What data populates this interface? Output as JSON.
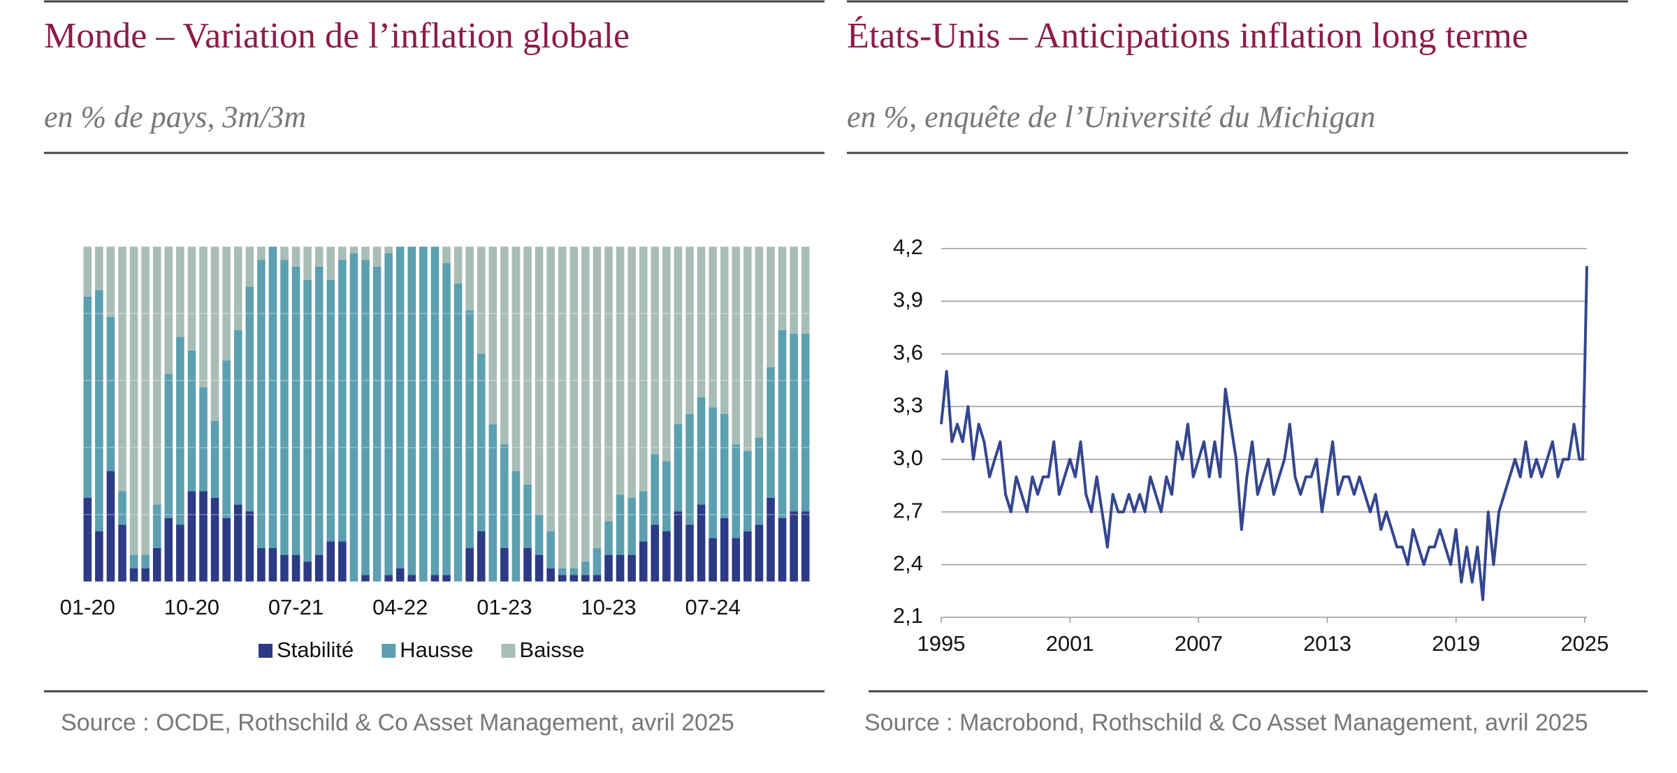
{
  "chart_data": [
    {
      "type": "stacked_bar",
      "title": "Monde – Variation de l’inflation globale",
      "subtitle": "en % de pays, 3m/3m",
      "source": "Source : OCDE, Rothschild & Co Asset Management, avril 2025",
      "categories": [
        "01-20",
        null,
        null,
        null,
        null,
        null,
        null,
        null,
        null,
        "10-20",
        null,
        null,
        null,
        null,
        null,
        null,
        null,
        null,
        "07-21",
        null,
        null,
        null,
        null,
        null,
        null,
        null,
        null,
        "04-22",
        null,
        null,
        null,
        null,
        null,
        null,
        null,
        null,
        "01-23",
        null,
        null,
        null,
        null,
        null,
        null,
        null,
        null,
        "10-23",
        null,
        null,
        null,
        null,
        null,
        null,
        null,
        null,
        "07-24",
        null,
        null,
        null,
        null,
        null,
        null,
        null,
        null
      ],
      "series": [
        {
          "name": "Stabilité",
          "color": "#2d3a86",
          "values": [
            25,
            15,
            33,
            17,
            4,
            4,
            10,
            19,
            17,
            27,
            27,
            25,
            19,
            23,
            21,
            10,
            10,
            8,
            8,
            6,
            8,
            12,
            12,
            0,
            2,
            0,
            2,
            4,
            2,
            0,
            2,
            2,
            0,
            10,
            15,
            0,
            10,
            0,
            10,
            8,
            4,
            2,
            2,
            2,
            2,
            8,
            8,
            8,
            12,
            17,
            15,
            21,
            17,
            23,
            13,
            19,
            13,
            15,
            17,
            25,
            19,
            21,
            21
          ]
        },
        {
          "name": "Hausse",
          "color": "#5c9fb0",
          "values": [
            60,
            72,
            46,
            10,
            4,
            4,
            13,
            43,
            56,
            42,
            31,
            23,
            47,
            52,
            67,
            86,
            90,
            88,
            86,
            84,
            86,
            78,
            84,
            98,
            94,
            94,
            96,
            96,
            98,
            100,
            98,
            93,
            89,
            71,
            53,
            47,
            31,
            33,
            19,
            12,
            11,
            2,
            2,
            4,
            8,
            10,
            18,
            17,
            15,
            21,
            21,
            26,
            33,
            32,
            39,
            31,
            28,
            24,
            26,
            39,
            56,
            53,
            53
          ]
        },
        {
          "name": "Baisse",
          "color": "#a9bdb7",
          "values": [
            15,
            13,
            21,
            73,
            92,
            92,
            77,
            38,
            27,
            31,
            42,
            52,
            34,
            25,
            12,
            4,
            0,
            4,
            6,
            10,
            6,
            10,
            4,
            2,
            4,
            6,
            2,
            0,
            0,
            0,
            0,
            5,
            11,
            19,
            32,
            53,
            59,
            67,
            71,
            80,
            85,
            96,
            96,
            94,
            90,
            82,
            74,
            75,
            73,
            62,
            64,
            53,
            50,
            45,
            48,
            50,
            59,
            61,
            57,
            36,
            25,
            26,
            26
          ]
        }
      ],
      "ylim": [
        0,
        100
      ],
      "yticks": [
        0,
        20,
        40,
        60,
        80,
        100
      ],
      "grid": true,
      "legend": "bottom"
    },
    {
      "type": "line",
      "title": "États-Unis – Anticipations inflation long terme",
      "subtitle": "en %, enquête de l’Université du Michigan",
      "source": "Source : Macrobond, Rothschild & Co Asset Management, avril 2025",
      "x": [
        1995,
        1995.25,
        1995.5,
        1995.75,
        1996,
        1996.25,
        1996.5,
        1996.75,
        1997,
        1997.25,
        1997.5,
        1997.75,
        1998,
        1998.25,
        1998.5,
        1998.75,
        1999,
        1999.25,
        1999.5,
        1999.75,
        2000,
        2000.25,
        2000.5,
        2000.75,
        2001,
        2001.25,
        2001.5,
        2001.75,
        2002,
        2002.25,
        2002.5,
        2002.75,
        2003,
        2003.25,
        2003.5,
        2003.75,
        2004,
        2004.25,
        2004.5,
        2004.75,
        2005,
        2005.25,
        2005.5,
        2005.75,
        2006,
        2006.25,
        2006.5,
        2006.75,
        2007,
        2007.25,
        2007.5,
        2007.75,
        2008,
        2008.25,
        2008.5,
        2008.75,
        2009,
        2009.25,
        2009.5,
        2009.75,
        2010,
        2010.25,
        2010.5,
        2010.75,
        2011,
        2011.25,
        2011.5,
        2011.75,
        2012,
        2012.25,
        2012.5,
        2012.75,
        2013,
        2013.25,
        2013.5,
        2013.75,
        2014,
        2014.25,
        2014.5,
        2014.75,
        2015,
        2015.25,
        2015.5,
        2015.75,
        2016,
        2016.25,
        2016.5,
        2016.75,
        2017,
        2017.25,
        2017.5,
        2017.75,
        2018,
        2018.25,
        2018.5,
        2018.75,
        2019,
        2019.25,
        2019.5,
        2019.75,
        2020,
        2020.25,
        2020.5,
        2020.75,
        2021,
        2021.25,
        2021.5,
        2021.75,
        2022,
        2022.25,
        2022.5,
        2022.75,
        2023,
        2023.25,
        2023.5,
        2023.75,
        2024,
        2024.25,
        2024.5,
        2024.75,
        2024.9,
        2025,
        2025.1
      ],
      "series": [
        {
          "name": "Anticipations",
          "color": "#34468f",
          "values": [
            3.2,
            3.5,
            3.1,
            3.2,
            3.1,
            3.3,
            3.0,
            3.2,
            3.1,
            2.9,
            3.0,
            3.1,
            2.8,
            2.7,
            2.9,
            2.8,
            2.7,
            2.9,
            2.8,
            2.9,
            2.9,
            3.1,
            2.8,
            2.9,
            3.0,
            2.9,
            3.1,
            2.8,
            2.7,
            2.9,
            2.7,
            2.5,
            2.8,
            2.7,
            2.7,
            2.8,
            2.7,
            2.8,
            2.7,
            2.9,
            2.8,
            2.7,
            2.9,
            2.8,
            3.1,
            3.0,
            3.2,
            2.9,
            3.0,
            3.1,
            2.9,
            3.1,
            2.9,
            3.4,
            3.2,
            3.0,
            2.6,
            2.9,
            3.1,
            2.8,
            2.9,
            3.0,
            2.8,
            2.9,
            3.0,
            3.2,
            2.9,
            2.8,
            2.9,
            2.9,
            3.0,
            2.7,
            2.9,
            3.1,
            2.8,
            2.9,
            2.9,
            2.8,
            2.9,
            2.8,
            2.7,
            2.8,
            2.6,
            2.7,
            2.6,
            2.5,
            2.5,
            2.4,
            2.6,
            2.5,
            2.4,
            2.5,
            2.5,
            2.6,
            2.5,
            2.4,
            2.6,
            2.3,
            2.5,
            2.3,
            2.5,
            2.2,
            2.7,
            2.4,
            2.7,
            2.8,
            2.9,
            3.0,
            2.9,
            3.1,
            2.9,
            3.0,
            2.9,
            3.0,
            3.1,
            2.9,
            3.0,
            3.0,
            3.2,
            3.0,
            3.0,
            3.5,
            4.1
          ]
        }
      ],
      "xlim": [
        1995,
        2025.1
      ],
      "xticks": [
        1995,
        2001,
        2007,
        2013,
        2019,
        2025
      ],
      "ylim": [
        2.1,
        4.2
      ],
      "yticks": [
        {
          "value": 2.1,
          "label": "2,1"
        },
        {
          "value": 2.4,
          "label": "2,4"
        },
        {
          "value": 2.7,
          "label": "2,7"
        },
        {
          "value": 3.0,
          "label": "3,0"
        },
        {
          "value": 3.3,
          "label": "3,3"
        },
        {
          "value": 3.6,
          "label": "3,6"
        },
        {
          "value": 3.9,
          "label": "3,9"
        },
        {
          "value": 4.2,
          "label": "4,2"
        }
      ],
      "grid": true
    }
  ]
}
